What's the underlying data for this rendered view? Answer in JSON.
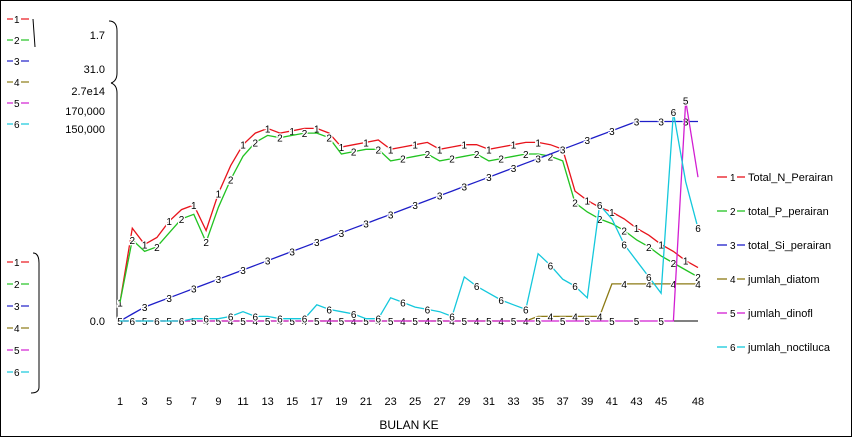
{
  "chart_data": {
    "type": "line",
    "xlabel": "BULAN KE",
    "ylabel": "",
    "x": [
      1,
      2,
      3,
      4,
      5,
      6,
      7,
      8,
      9,
      10,
      11,
      12,
      13,
      14,
      15,
      16,
      17,
      18,
      19,
      20,
      21,
      22,
      23,
      24,
      25,
      26,
      27,
      28,
      29,
      30,
      31,
      32,
      33,
      34,
      35,
      36,
      37,
      38,
      39,
      40,
      41,
      42,
      43,
      44,
      45,
      46,
      47,
      48
    ],
    "xticks": [
      "1",
      "3",
      "5",
      "7",
      "9",
      "11",
      "13",
      "15",
      "17",
      "19",
      "21",
      "23",
      "25",
      "27",
      "29",
      "31",
      "33",
      "35",
      "37",
      "39",
      "41",
      "43",
      "45",
      "48"
    ],
    "axis_labels": {
      "upper": [
        "1.7",
        "31.0",
        "2.7e14",
        "170,000",
        "150,000"
      ],
      "zero": "0.0"
    },
    "left_key_upper": [
      "1",
      "2",
      "3",
      "4",
      "5",
      "6"
    ],
    "left_key_lower": [
      "1",
      "2",
      "3",
      "4",
      "5",
      "6"
    ],
    "series": [
      {
        "name": "Total_N_Perairan",
        "marker": "1",
        "color": "#e8141c",
        "values": [
          0.08,
          0.4,
          0.33,
          0.36,
          0.43,
          0.48,
          0.5,
          0.39,
          0.55,
          0.67,
          0.76,
          0.81,
          0.83,
          0.81,
          0.82,
          0.83,
          0.83,
          0.81,
          0.75,
          0.76,
          0.77,
          0.78,
          0.74,
          0.75,
          0.76,
          0.77,
          0.74,
          0.75,
          0.76,
          0.76,
          0.74,
          0.75,
          0.76,
          0.77,
          0.77,
          0.76,
          0.74,
          0.56,
          0.52,
          0.49,
          0.47,
          0.44,
          0.4,
          0.37,
          0.33,
          0.3,
          0.26,
          0.23
        ]
      },
      {
        "name": "total_P_perairan",
        "marker": "2",
        "color": "#22c322",
        "values": [
          0.08,
          0.35,
          0.3,
          0.32,
          0.38,
          0.44,
          0.46,
          0.34,
          0.49,
          0.61,
          0.71,
          0.77,
          0.8,
          0.79,
          0.8,
          0.81,
          0.81,
          0.79,
          0.72,
          0.73,
          0.74,
          0.74,
          0.69,
          0.7,
          0.71,
          0.72,
          0.69,
          0.7,
          0.71,
          0.72,
          0.69,
          0.7,
          0.71,
          0.72,
          0.72,
          0.71,
          0.69,
          0.51,
          0.47,
          0.44,
          0.42,
          0.39,
          0.35,
          0.32,
          0.28,
          0.25,
          0.22,
          0.19
        ]
      },
      {
        "name": "total_Si_perairan",
        "marker": "3",
        "color": "#1e1ec8",
        "values": [
          0.0,
          0.03,
          0.06,
          0.08,
          0.1,
          0.12,
          0.14,
          0.16,
          0.18,
          0.2,
          0.22,
          0.24,
          0.26,
          0.28,
          0.3,
          0.32,
          0.34,
          0.36,
          0.38,
          0.4,
          0.42,
          0.44,
          0.46,
          0.48,
          0.5,
          0.52,
          0.54,
          0.56,
          0.58,
          0.6,
          0.62,
          0.64,
          0.66,
          0.68,
          0.7,
          0.72,
          0.74,
          0.76,
          0.78,
          0.8,
          0.82,
          0.84,
          0.86,
          0.86,
          0.86,
          0.86,
          0.86,
          0.86
        ]
      },
      {
        "name": "jumlah_diatom",
        "marker": "4",
        "color": "#8c7a14",
        "values": [
          0,
          0,
          0,
          0,
          0,
          0,
          0,
          0,
          0,
          0,
          0,
          0,
          0,
          0,
          0,
          0,
          0,
          0,
          0,
          0,
          0,
          0,
          0,
          0,
          0,
          0,
          0,
          0,
          0,
          0,
          0,
          0,
          0,
          0,
          0.02,
          0.02,
          0.02,
          0.02,
          0.02,
          0.02,
          0.16,
          0.16,
          0.16,
          0.16,
          0.16,
          0.16,
          0.16,
          0.16
        ]
      },
      {
        "name": "jumlah_dinofl",
        "marker": "5",
        "color": "#d21ed2",
        "values": [
          0,
          0,
          0,
          0,
          0,
          0,
          0,
          0,
          0,
          0,
          0,
          0,
          0,
          0,
          0,
          0,
          0,
          0,
          0,
          0,
          0,
          0,
          0,
          0,
          0,
          0,
          0,
          0,
          0,
          0,
          0,
          0,
          0,
          0,
          0,
          0,
          0,
          0,
          0,
          0,
          0,
          0,
          0,
          0,
          0,
          0,
          0.95,
          0.62
        ]
      },
      {
        "name": "jumlah_noctiluca",
        "marker": "6",
        "color": "#14c8dc",
        "values": [
          0,
          0,
          0,
          0,
          0,
          0,
          0.01,
          0.01,
          0.01,
          0.02,
          0.04,
          0.02,
          0.02,
          0.01,
          0.01,
          0.01,
          0.07,
          0.05,
          0.04,
          0.03,
          0.01,
          0.01,
          0.1,
          0.08,
          0.06,
          0.05,
          0.04,
          0.02,
          0.19,
          0.15,
          0.12,
          0.09,
          0.07,
          0.05,
          0.29,
          0.24,
          0.18,
          0.15,
          0.1,
          0.5,
          0.44,
          0.33,
          0.26,
          0.19,
          0.12,
          0.9,
          0.6,
          0.4
        ]
      }
    ]
  }
}
